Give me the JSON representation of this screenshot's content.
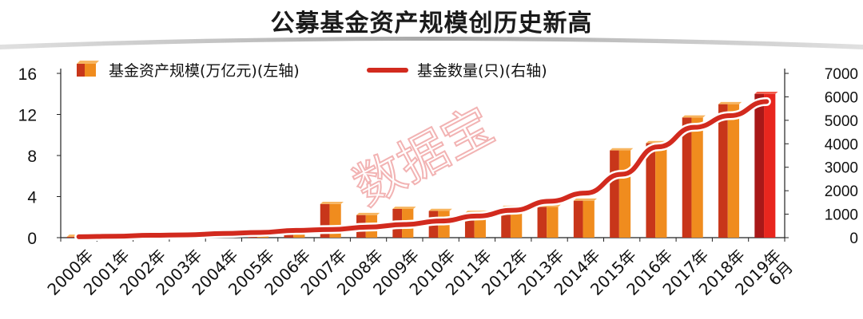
{
  "chart_data": {
    "type": "bar",
    "title": "公募基金资产规模创历史新高",
    "watermark": "数据宝",
    "categories": [
      "2000年",
      "2001年",
      "2002年",
      "2003年",
      "2004年",
      "2005年",
      "2006年",
      "2007年",
      "2008年",
      "2009年",
      "2010年",
      "2011年",
      "2012年",
      "2013年",
      "2014年",
      "2015年",
      "2016年",
      "2017年",
      "2018年",
      "2019年6月"
    ],
    "category_lines": [
      [
        "2000年"
      ],
      [
        "2001年"
      ],
      [
        "2002年"
      ],
      [
        "2003年"
      ],
      [
        "2004年"
      ],
      [
        "2005年"
      ],
      [
        "2006年"
      ],
      [
        "2007年"
      ],
      [
        "2008年"
      ],
      [
        "2009年"
      ],
      [
        "2010年"
      ],
      [
        "2011年"
      ],
      [
        "2012年"
      ],
      [
        "2013年"
      ],
      [
        "2014年"
      ],
      [
        "2015年"
      ],
      [
        "2016年"
      ],
      [
        "2017年"
      ],
      [
        "2018年"
      ],
      [
        "2019年",
        "6月"
      ]
    ],
    "series": [
      {
        "name": "基金资产规模(万亿元)(左轴)",
        "type": "bar",
        "axis": "left",
        "values": [
          0.08,
          0.08,
          0.13,
          0.16,
          0.32,
          0.47,
          0.86,
          3.28,
          2.2,
          2.8,
          2.6,
          2.4,
          2.9,
          3.0,
          3.6,
          8.5,
          9.2,
          11.7,
          13.0,
          14.0
        ]
      },
      {
        "name": "基金数量(只)(右轴)",
        "type": "line",
        "axis": "right",
        "values": [
          40,
          60,
          100,
          120,
          180,
          220,
          310,
          350,
          450,
          560,
          710,
          920,
          1170,
          1550,
          1900,
          2700,
          3870,
          4700,
          5200,
          5800
        ]
      }
    ],
    "y_left": {
      "min": 0,
      "max": 16,
      "ticks": [
        0,
        4,
        8,
        12,
        16
      ]
    },
    "y_right": {
      "min": 0,
      "max": 7000,
      "ticks": [
        0,
        1000,
        2000,
        3000,
        4000,
        5000,
        6000,
        7000
      ]
    },
    "legend_position": "top-left",
    "colors": {
      "bar_front": "#f08c1e",
      "bar_side": "#c8361a",
      "bar_top": "#f7b560",
      "bar_highlight_front": "#e8261e",
      "bar_highlight_side": "#a81818",
      "line": "#d22a1e",
      "line_glow": "#ffffff",
      "axis": "#222222",
      "title_bar": "#b8b8b8",
      "watermark": "#f0a6a6"
    }
  }
}
